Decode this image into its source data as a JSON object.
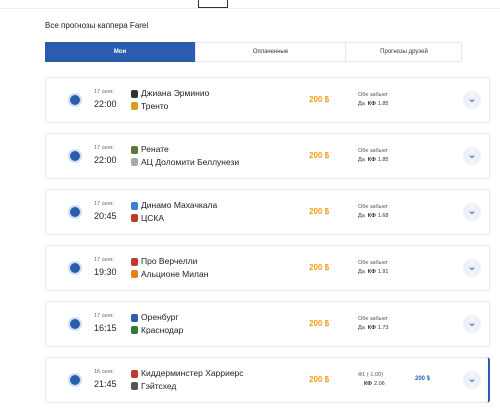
{
  "header": {
    "title": "Все прогнозы каппера Farel"
  },
  "tabs": [
    "Мои",
    "Оплаченные",
    "Прогнозы друзей"
  ],
  "rows": [
    {
      "date": "17 сент.",
      "time": "22:00",
      "team1": "Джиана Эрминио",
      "team2": "Тренто",
      "stake": "200 $",
      "bet": "Обе забьют",
      "pick": "Да",
      "odds_label": "КФ",
      "odds": "1.85"
    },
    {
      "date": "17 сент.",
      "time": "22:00",
      "team1": "Ренате",
      "team2": "АЦ Доломити Беллунези",
      "stake": "200 $",
      "bet": "Обе забьют",
      "pick": "Да",
      "odds_label": "КФ",
      "odds": "1.85"
    },
    {
      "date": "17 сент.",
      "time": "20:45",
      "team1": "Динамо Махачкала",
      "team2": "ЦСКА",
      "stake": "200 $",
      "bet": "Обе забьют",
      "pick": "Да",
      "odds_label": "КФ",
      "odds": "1.68"
    },
    {
      "date": "17 сент.",
      "time": "19:30",
      "team1": "Про Верчелли",
      "team2": "Альционе Милан",
      "stake": "200 $",
      "bet": "Обе забьют",
      "pick": "Да",
      "odds_label": "КФ",
      "odds": "1.91"
    },
    {
      "date": "17 сент.",
      "time": "16:15",
      "team1": "Оренбург",
      "team2": "Краснодар",
      "stake": "200 $",
      "bet": "Обе забьют",
      "pick": "Да",
      "odds_label": "КФ",
      "odds": "1.73"
    },
    {
      "date": "16 сент.",
      "time": "21:45",
      "team1": "Киддерминстер Харриерс",
      "team2": "Гэйтсхед",
      "stake": "200 $",
      "bet": "Ф1 (-1.00)",
      "odds_label": "КФ",
      "odds": "2.06",
      "win": "200 $"
    }
  ]
}
